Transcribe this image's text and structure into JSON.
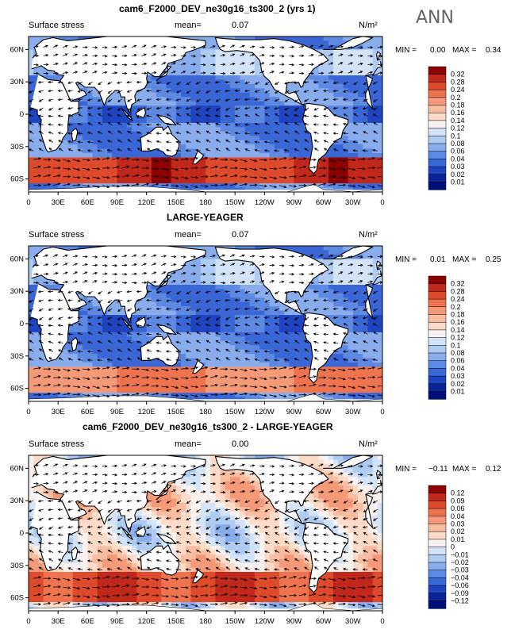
{
  "season": "ANN",
  "units": "N/m²",
  "lon_ticks": [
    "0",
    "30E",
    "60E",
    "90E",
    "120E",
    "150E",
    "180",
    "150W",
    "120W",
    "90W",
    "60W",
    "30W",
    "0"
  ],
  "lat_ticks": [
    "60N",
    "30N",
    "0",
    "30S",
    "60S"
  ],
  "chart_data": [
    {
      "type": "heatmap",
      "title": "cam6_F2000_DEV_ne30g16_ts300_2 (yrs 1)",
      "variable": "Surface stress",
      "mean_label": "mean=",
      "mean": "0.07",
      "min_label": "MIN =",
      "min": "0.00",
      "max_label": "MAX =",
      "max": "0.34",
      "colorbar": [
        "0.32",
        "0.28",
        "0.24",
        "0.2",
        "0.18",
        "0.16",
        "0.14",
        "0.12",
        "0.1",
        "0.08",
        "0.06",
        "0.04",
        "0.03",
        "0.02",
        "0.01"
      ],
      "colors": [
        "#8b0000",
        "#c0281c",
        "#de4a2c",
        "#ee7450",
        "#f59a78",
        "#f9bea2",
        "#fcdcc8",
        "#f7f2ef",
        "#d4e4f8",
        "#b0cbf2",
        "#89acec",
        "#5e89e3",
        "#3a66d6",
        "#1f44c0",
        "#0a2497",
        "#00107a"
      ]
    },
    {
      "type": "heatmap",
      "title": "LARGE-YEAGER",
      "variable": "Surface stress",
      "mean_label": "mean=",
      "mean": "0.07",
      "min_label": "MIN =",
      "min": "0.01",
      "max_label": "MAX =",
      "max": "0.25",
      "colorbar": [
        "0.32",
        "0.28",
        "0.24",
        "0.2",
        "0.18",
        "0.16",
        "0.14",
        "0.12",
        "0.1",
        "0.08",
        "0.06",
        "0.04",
        "0.03",
        "0.02",
        "0.01"
      ],
      "colors": [
        "#8b0000",
        "#c0281c",
        "#de4a2c",
        "#ee7450",
        "#f59a78",
        "#f9bea2",
        "#fcdcc8",
        "#f7f2ef",
        "#d4e4f8",
        "#b0cbf2",
        "#89acec",
        "#5e89e3",
        "#3a66d6",
        "#1f44c0",
        "#0a2497",
        "#00107a"
      ]
    },
    {
      "type": "heatmap",
      "title": "cam6_F2000_DEV_ne30g16_ts300_2 - LARGE-YEAGER",
      "variable": "Surface stress",
      "mean_label": "mean=",
      "mean": "0.00",
      "min_label": "MIN =",
      "min": "−0.11",
      "max_label": "MAX =",
      "max": "0.12",
      "colorbar": [
        "0.12",
        "0.09",
        "0.06",
        "0.04",
        "0.03",
        "0.02",
        "0.01",
        "0",
        "−0.01",
        "−0.02",
        "−0.03",
        "−0.04",
        "−0.06",
        "−0.09",
        "−0.12"
      ],
      "colors": [
        "#8b0000",
        "#c0281c",
        "#de4a2c",
        "#ee7450",
        "#f59a78",
        "#f9bea2",
        "#fcdcc8",
        "#f7f2ef",
        "#d4e4f8",
        "#b0cbf2",
        "#89acec",
        "#5e89e3",
        "#3a66d6",
        "#1f44c0",
        "#0a2497",
        "#00107a"
      ]
    }
  ]
}
